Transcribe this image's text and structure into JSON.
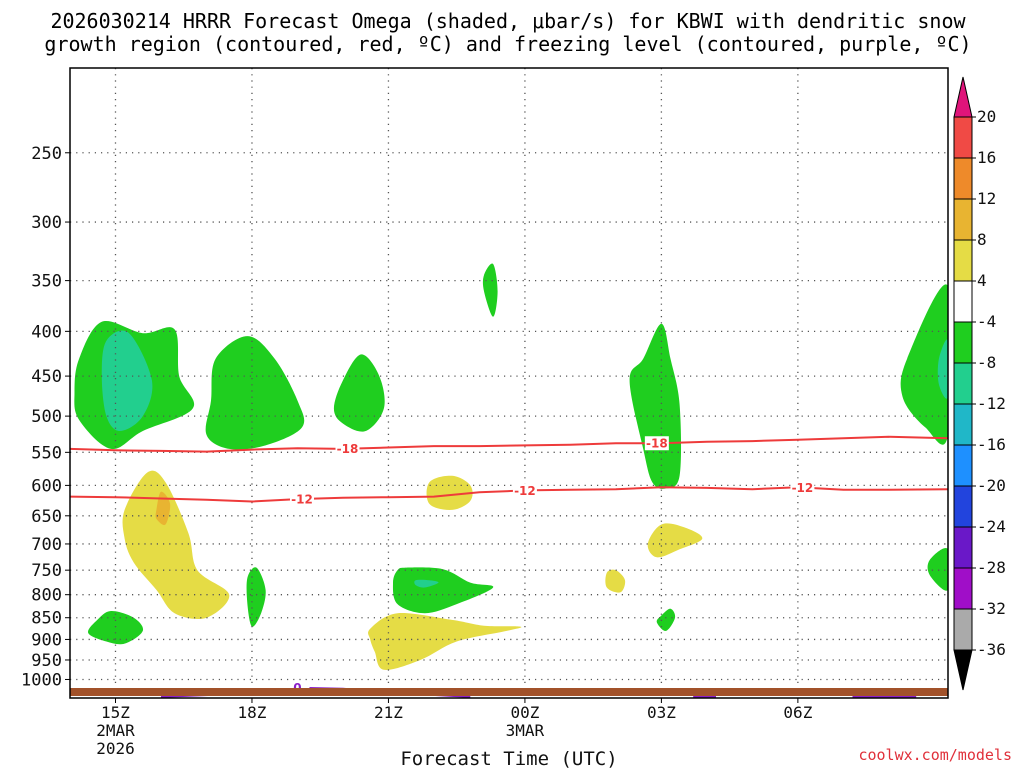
{
  "title": {
    "line1": "2026030214 HRRR Forecast Omega (shaded, μbar/s) for KBWI with dendritic snow",
    "line2": "growth region (contoured, red, ºC) and freezing level (contoured, purple, ºC)"
  },
  "credit": "coolwx.com/models",
  "chart_data": {
    "type": "contour",
    "title": "2026030214 HRRR Forecast Omega (shaded, μbar/s) for KBWI with dendritic snow growth region (contoured, red, ºC) and freezing level (contoured, purple, ºC)",
    "xlabel": "Forecast Time (UTC)",
    "ylabel": "",
    "y_scale": "log-pressure",
    "ylim": [
      1050,
      200
    ],
    "xlim_hours_from_15Z": [
      -1,
      18.3
    ],
    "grid": true,
    "y_ticks": [
      "250",
      "300",
      "350",
      "400",
      "450",
      "500",
      "550",
      "600",
      "650",
      "700",
      "750",
      "800",
      "850",
      "900",
      "950",
      "1000"
    ],
    "x_ticks": [
      {
        "label": "15Z",
        "hour": 0,
        "sub": [
          "2MAR",
          "2026"
        ]
      },
      {
        "label": "18Z",
        "hour": 3,
        "sub": []
      },
      {
        "label": "21Z",
        "hour": 6,
        "sub": []
      },
      {
        "label": "00Z",
        "hour": 9,
        "sub": [
          "3MAR"
        ]
      },
      {
        "label": "03Z",
        "hour": 12,
        "sub": []
      },
      {
        "label": "06Z",
        "hour": 15,
        "sub": []
      }
    ],
    "colorbar": {
      "labels": [
        "20",
        "16",
        "12",
        "8",
        "4",
        "-4",
        "-8",
        "-12",
        "-16",
        "-20",
        "-24",
        "-28",
        "-32",
        "-36"
      ],
      "colors": [
        "#ee2a5a",
        "#f04a45",
        "#ee8a2a",
        "#e8b431",
        "#e5dc45",
        "#ffffff",
        "#1fce1f",
        "#22cf8e",
        "#20b7c8",
        "#1e90ff",
        "#2244dd",
        "#6a18c8",
        "#a00ec8",
        "#aaaaaa"
      ],
      "top_arrow_color": "#e0147a",
      "bottom_arrow_color": "#000000"
    },
    "contours": [
      {
        "label": "-18",
        "color": "#ee3b3b",
        "points": [
          [
            -1,
            545
          ],
          [
            0,
            547
          ],
          [
            1,
            548
          ],
          [
            2,
            549
          ],
          [
            3,
            546
          ],
          [
            4,
            544
          ],
          [
            5,
            545
          ],
          [
            6,
            543
          ],
          [
            7,
            541
          ],
          [
            8,
            541
          ],
          [
            9,
            540
          ],
          [
            10,
            539
          ],
          [
            11,
            537
          ],
          [
            12,
            537
          ],
          [
            13,
            535
          ],
          [
            14,
            534
          ],
          [
            15,
            532
          ],
          [
            16,
            530
          ],
          [
            17,
            528
          ],
          [
            18.3,
            530
          ]
        ],
        "label_hours": [
          5.1,
          11.9
        ]
      },
      {
        "label": "-12",
        "color": "#ee3b3b",
        "points": [
          [
            -1,
            618
          ],
          [
            0,
            619
          ],
          [
            1,
            621
          ],
          [
            2,
            623
          ],
          [
            3,
            626
          ],
          [
            4,
            622
          ],
          [
            5,
            620
          ],
          [
            6,
            619
          ],
          [
            7,
            618
          ],
          [
            8,
            611
          ],
          [
            9,
            608
          ],
          [
            10,
            607
          ],
          [
            11,
            606
          ],
          [
            12,
            603
          ],
          [
            13,
            604
          ],
          [
            14,
            606
          ],
          [
            15,
            603
          ],
          [
            16,
            607
          ],
          [
            17,
            607
          ],
          [
            18.3,
            606
          ]
        ],
        "label_hours": [
          4.1,
          9.0,
          15.1
        ]
      },
      {
        "label": "0",
        "color": "#8b1ec9",
        "points": [
          [
            1,
            1047
          ],
          [
            3,
            1037
          ],
          [
            4,
            1022
          ],
          [
            5,
            1025
          ],
          [
            6,
            1035
          ],
          [
            7.8,
            1047
          ]
        ],
        "label_hours": [
          4.0
        ]
      },
      {
        "label": "",
        "color": "#8b1ec9",
        "points": [
          [
            12.7,
            1047
          ],
          [
            13.2,
            1047
          ]
        ],
        "label_hours": []
      },
      {
        "label": "",
        "color": "#8b1ec9",
        "points": [
          [
            16.2,
            1047
          ],
          [
            17.6,
            1047
          ]
        ],
        "label_hours": []
      }
    ],
    "omega_regions": [
      {
        "value_range": [
          -8,
          -4
        ],
        "points": [
          [
            -0.8,
            430
          ],
          [
            -0.3,
            390
          ],
          [
            0.6,
            402
          ],
          [
            1.3,
            398
          ],
          [
            1.4,
            450
          ],
          [
            1.7,
            490
          ],
          [
            0.6,
            520
          ],
          [
            -0.1,
            545
          ],
          [
            -0.8,
            505
          ],
          [
            -0.9,
            470
          ]
        ]
      },
      {
        "value_range": [
          -12,
          -8
        ],
        "points": [
          [
            -0.2,
            410
          ],
          [
            0.3,
            402
          ],
          [
            0.8,
            455
          ],
          [
            0.6,
            500
          ],
          [
            0.1,
            520
          ],
          [
            -0.2,
            500
          ],
          [
            -0.3,
            450
          ]
        ]
      },
      {
        "value_range": [
          -8,
          -4
        ],
        "points": [
          [
            2.2,
            430
          ],
          [
            2.9,
            405
          ],
          [
            3.5,
            430
          ],
          [
            4.0,
            480
          ],
          [
            4.1,
            515
          ],
          [
            3.3,
            540
          ],
          [
            2.5,
            545
          ],
          [
            2.0,
            525
          ],
          [
            2.1,
            480
          ]
        ]
      },
      {
        "value_range": [
          -8,
          -4
        ],
        "points": [
          [
            5.0,
            455
          ],
          [
            5.4,
            425
          ],
          [
            5.8,
            450
          ],
          [
            5.9,
            490
          ],
          [
            5.5,
            520
          ],
          [
            5.0,
            510
          ],
          [
            4.8,
            490
          ]
        ]
      },
      {
        "value_range": [
          -8,
          -4
        ],
        "points": [
          [
            8.1,
            345
          ],
          [
            8.3,
            335
          ],
          [
            8.4,
            360
          ],
          [
            8.3,
            385
          ],
          [
            8.1,
            360
          ]
        ]
      },
      {
        "value_range": [
          -8,
          -4
        ],
        "points": [
          [
            11.6,
            430
          ],
          [
            12.0,
            392
          ],
          [
            12.2,
            430
          ],
          [
            12.4,
            485
          ],
          [
            12.4,
            585
          ],
          [
            12.1,
            605
          ],
          [
            11.8,
            595
          ],
          [
            11.6,
            545
          ],
          [
            11.3,
            455
          ]
        ]
      },
      {
        "value_range": [
          -8,
          -4
        ],
        "points": [
          [
            17.4,
            430
          ],
          [
            18.3,
            355
          ],
          [
            18.3,
            525
          ],
          [
            17.8,
            515
          ],
          [
            17.3,
            475
          ]
        ]
      },
      {
        "value_range": [
          -12,
          -8
        ],
        "points": [
          [
            18.1,
            430
          ],
          [
            18.3,
            410
          ],
          [
            18.3,
            475
          ],
          [
            18.1,
            460
          ]
        ]
      },
      {
        "value_range": [
          -8,
          -4
        ],
        "points": [
          [
            17.9,
            730
          ],
          [
            18.3,
            710
          ],
          [
            18.3,
            790
          ],
          [
            17.9,
            760
          ]
        ]
      },
      {
        "value_range": [
          -8,
          -4
        ],
        "points": [
          [
            2.9,
            765
          ],
          [
            3.1,
            745
          ],
          [
            3.3,
            790
          ],
          [
            3.2,
            840
          ],
          [
            3.0,
            870
          ],
          [
            2.9,
            820
          ]
        ]
      },
      {
        "value_range": [
          -8,
          -4
        ],
        "points": [
          [
            6.4,
            745
          ],
          [
            7.2,
            748
          ],
          [
            7.8,
            775
          ],
          [
            8.3,
            785
          ],
          [
            7.5,
            820
          ],
          [
            6.8,
            840
          ],
          [
            6.2,
            820
          ],
          [
            6.1,
            775
          ],
          [
            6.2,
            750
          ]
        ]
      },
      {
        "value_range": [
          -12,
          -8
        ],
        "points": [
          [
            6.6,
            770
          ],
          [
            6.9,
            770
          ],
          [
            7.1,
            775
          ],
          [
            6.8,
            785
          ],
          [
            6.6,
            780
          ]
        ]
      },
      {
        "value_range": [
          -8,
          -4
        ],
        "points": [
          [
            -0.4,
            855
          ],
          [
            -0.1,
            835
          ],
          [
            0.4,
            850
          ],
          [
            0.6,
            880
          ],
          [
            0.2,
            910
          ],
          [
            -0.2,
            905
          ],
          [
            -0.6,
            885
          ]
        ]
      },
      {
        "value_range": [
          -8,
          -4
        ],
        "points": [
          [
            12.0,
            845
          ],
          [
            12.2,
            830
          ],
          [
            12.3,
            850
          ],
          [
            12.1,
            880
          ],
          [
            11.9,
            860
          ]
        ]
      },
      {
        "value_range": [
          4,
          8
        ],
        "points": [
          [
            0.2,
            640
          ],
          [
            0.7,
            580
          ],
          [
            1.1,
            595
          ],
          [
            1.6,
            680
          ],
          [
            1.8,
            750
          ],
          [
            2.5,
            800
          ],
          [
            2.0,
            850
          ],
          [
            1.3,
            840
          ],
          [
            0.9,
            790
          ],
          [
            0.4,
            735
          ],
          [
            0.2,
            690
          ]
        ]
      },
      {
        "value_range": [
          8,
          12
        ],
        "points": [
          [
            0.9,
            640
          ],
          [
            1.0,
            610
          ],
          [
            1.2,
            630
          ],
          [
            1.1,
            665
          ],
          [
            0.9,
            655
          ]
        ]
      },
      {
        "value_range": [
          4,
          8
        ],
        "points": [
          [
            6.9,
            595
          ],
          [
            7.4,
            585
          ],
          [
            7.8,
            600
          ],
          [
            7.8,
            625
          ],
          [
            7.4,
            640
          ],
          [
            6.9,
            630
          ]
        ]
      },
      {
        "value_range": [
          4,
          8
        ],
        "points": [
          [
            11.7,
            700
          ],
          [
            12.0,
            665
          ],
          [
            12.5,
            670
          ],
          [
            12.9,
            690
          ],
          [
            12.4,
            710
          ],
          [
            11.9,
            725
          ]
        ]
      },
      {
        "value_range": [
          4,
          8
        ],
        "points": [
          [
            10.8,
            755
          ],
          [
            11.0,
            750
          ],
          [
            11.2,
            770
          ],
          [
            11.1,
            795
          ],
          [
            10.8,
            785
          ]
        ]
      },
      {
        "value_range": [
          4,
          8
        ],
        "points": [
          [
            5.6,
            875
          ],
          [
            6.2,
            840
          ],
          [
            7.4,
            855
          ],
          [
            8.1,
            868
          ],
          [
            8.9,
            870
          ],
          [
            8.6,
            880
          ],
          [
            7.5,
            905
          ],
          [
            6.7,
            950
          ],
          [
            5.9,
            975
          ],
          [
            5.7,
            930
          ],
          [
            5.6,
            900
          ]
        ]
      }
    ]
  }
}
